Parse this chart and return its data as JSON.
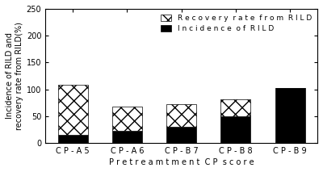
{
  "categories": [
    "C P - A 5",
    "C P - A 6",
    "C P - B 7",
    "C P - B 8",
    "C P - B 9"
  ],
  "incidence_values": [
    15,
    23,
    30,
    50,
    103
  ],
  "recovery_values": [
    93,
    45,
    43,
    32,
    0
  ],
  "ylim": [
    0,
    250
  ],
  "yticks": [
    0,
    50,
    100,
    150,
    200,
    250
  ],
  "xlabel": "P r e t r e a m t m e n t  C P  s c o r e",
  "ylabel": "Incidence of RILD and\nrecovery rate from RILD(%)",
  "legend_recovery": "R e c o v e r y  r a t e  f r o m  R I L D",
  "legend_incidence": "I n c i d e n c e  o f  R I L D",
  "bar_color_incidence": "#000000",
  "bar_color_recovery": "#ffffff",
  "background_color": "#ffffff",
  "bar_width": 0.55,
  "label_fontsize": 7,
  "tick_fontsize": 7,
  "legend_fontsize": 6.5
}
